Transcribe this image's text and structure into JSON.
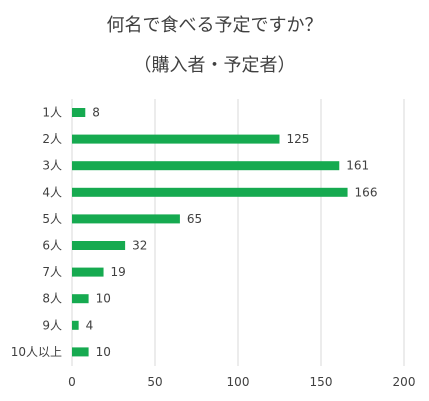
{
  "chart_data": {
    "type": "bar",
    "orientation": "horizontal",
    "title": "何名で食べる予定ですか？",
    "subtitle": "（購入者・予定者）",
    "categories": [
      "1人",
      "2人",
      "3人",
      "4人",
      "5人",
      "6人",
      "7人",
      "8人",
      "9人",
      "10人以上"
    ],
    "values": [
      8,
      125,
      161,
      166,
      65,
      32,
      19,
      10,
      4,
      10
    ],
    "xlim": [
      0,
      200
    ],
    "xticks": [
      0,
      50,
      100,
      150,
      200
    ],
    "grid": "vertical",
    "legend": "none",
    "colors": {
      "bar": "#16AA50",
      "grid": "#D9D9D9",
      "text": "#404040"
    }
  }
}
